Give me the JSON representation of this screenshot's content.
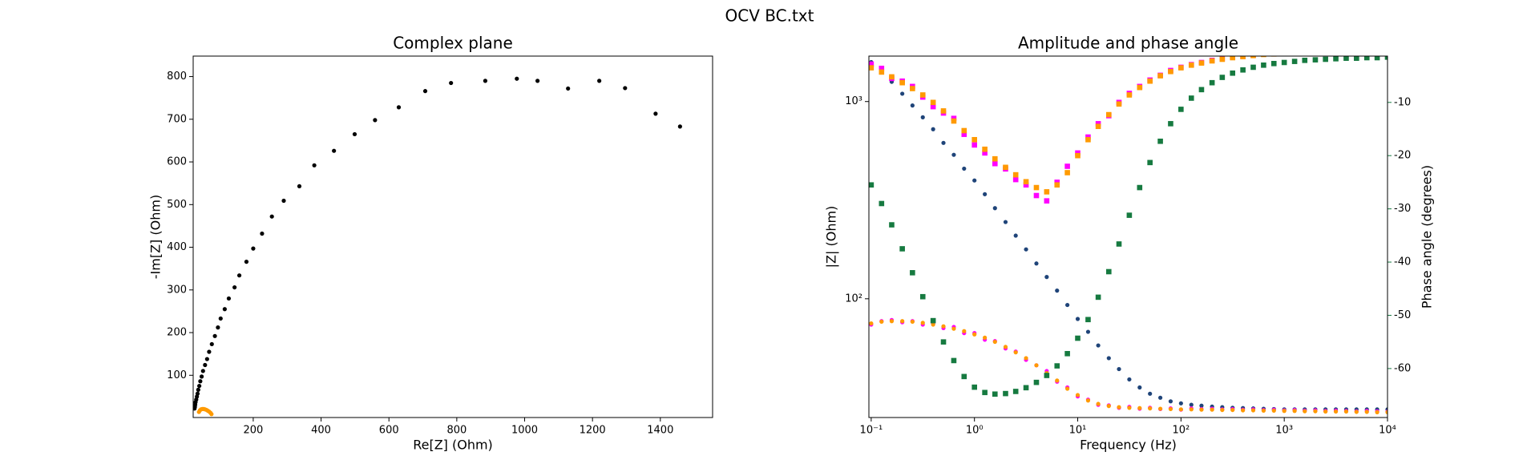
{
  "suptitle": "OCV BC.txt",
  "chart_data": [
    {
      "type": "scatter",
      "title": "Complex plane",
      "xlabel": "Re[Z] (Ohm)",
      "ylabel": "-Im[Z] (Ohm)",
      "xlim": [
        23,
        1554
      ],
      "ylim": [
        1,
        848
      ],
      "xticks": [
        200,
        400,
        600,
        800,
        1000,
        1200,
        1400
      ],
      "yticks": [
        100,
        200,
        300,
        400,
        500,
        600,
        700,
        800
      ],
      "series": [
        {
          "color": "#000000",
          "marker": "circle",
          "x": [
            1458,
            1386,
            1296,
            1220,
            1128,
            1038,
            977,
            884,
            783,
            707,
            629,
            559,
            499,
            438,
            380,
            336,
            290,
            255,
            226,
            200,
            180,
            159,
            145,
            128,
            116,
            104,
            96,
            87,
            78,
            70,
            64,
            58,
            52,
            48,
            44,
            41,
            38,
            36,
            34,
            32,
            30,
            29,
            28,
            27
          ],
          "values": [
            683,
            713,
            773,
            790,
            772,
            790,
            795,
            790,
            785,
            766,
            728,
            698,
            665,
            626,
            592,
            543,
            509,
            472,
            432,
            397,
            366,
            334,
            306,
            280,
            255,
            233,
            212,
            192,
            173,
            155,
            138,
            124,
            110,
            97,
            86,
            75,
            66,
            57,
            50,
            43,
            37,
            31,
            26,
            22
          ]
        },
        {
          "color": "#ff9a00",
          "marker": "circle",
          "x": [
            40,
            43,
            46,
            50,
            54,
            58,
            62,
            66,
            70,
            74,
            77
          ],
          "values": [
            14,
            18,
            20,
            21,
            21,
            20,
            19,
            17,
            15,
            12,
            9
          ]
        }
      ]
    },
    {
      "type": "scatter",
      "title": "Amplitude and phase angle",
      "xlabel": "Frequency (Hz)",
      "ylabel": "|Z| (Ohm)",
      "y2label": "Phase angle (degrees)",
      "ylabel_color": "#1f4479",
      "y2label_color": "#167a40",
      "xscale": "log",
      "yscale": "log",
      "xlim": [
        0.095,
        10000
      ],
      "ylim": [
        25,
        1700
      ],
      "y2lim": [
        -69.2,
        -1.3
      ],
      "xticks": [
        {
          "value": 0.1,
          "label": "10⁻¹"
        },
        {
          "value": 1,
          "label": "10⁰"
        },
        {
          "value": 10,
          "label": "10¹"
        },
        {
          "value": 100,
          "label": "10²"
        },
        {
          "value": 1000,
          "label": "10³"
        },
        {
          "value": 10000,
          "label": "10⁴"
        }
      ],
      "yticks": [
        {
          "value": 100,
          "label": "10²"
        },
        {
          "value": 1000,
          "label": "10³"
        }
      ],
      "y2ticks": [
        -10,
        -20,
        -30,
        -40,
        -50,
        -60
      ],
      "x": [
        0.1,
        0.126,
        0.158,
        0.2,
        0.251,
        0.316,
        0.398,
        0.501,
        0.631,
        0.794,
        1,
        1.26,
        1.58,
        2,
        2.51,
        3.16,
        3.98,
        5.01,
        6.31,
        7.94,
        10,
        12.6,
        15.8,
        20,
        25.1,
        31.6,
        39.8,
        50.1,
        63.1,
        79.4,
        100,
        126,
        158,
        200,
        251,
        316,
        398,
        501,
        631,
        794,
        1000,
        1260,
        1580,
        2000,
        2510,
        3160,
        3980,
        5010,
        6310,
        7940,
        10000
      ],
      "series": [
        {
          "color": "#1f4479",
          "marker": "circle",
          "axis": "y",
          "values": [
            1585,
            1413,
            1259,
            1096,
            955,
            832,
            724,
            617,
            537,
            457,
            398,
            339,
            288,
            245,
            209,
            178,
            151,
            129,
            110,
            93,
            79,
            68,
            58,
            50,
            44,
            39,
            35.5,
            33,
            31.5,
            30.2,
            29.5,
            29,
            28.7,
            28.4,
            28.2,
            28,
            27.9,
            27.8,
            27.7,
            27.6,
            27.5,
            27.5,
            27.5,
            27.5,
            27.5,
            27.5,
            27.5,
            27.5,
            27.5,
            27.5,
            27.5
          ]
        },
        {
          "color": "#ff00ff",
          "marker": "circle",
          "axis": "y",
          "values": [
            74,
            77,
            78,
            76,
            77,
            74,
            75,
            71,
            72,
            67,
            67,
            62,
            61,
            56,
            54,
            49,
            46,
            43,
            38,
            35.5,
            32,
            30.8,
            29,
            28.8,
            28,
            28.3,
            27.7,
            28,
            27.6,
            27.8,
            27.4,
            27.8,
            27.6,
            27.7,
            27.5,
            27.6,
            27.4,
            27.5,
            27.3,
            27.4,
            27.2,
            27.3,
            27.1,
            27.2,
            27.0,
            27.1,
            27.0,
            26.9,
            27.0,
            26.9,
            26.8
          ]
        },
        {
          "color": "#ff9a00",
          "marker": "circle",
          "axis": "y",
          "values": [
            75,
            76.5,
            77,
            77,
            76.5,
            75.5,
            74,
            72.5,
            70.5,
            68.5,
            66,
            63.5,
            60.5,
            57,
            53.5,
            50,
            46,
            42,
            38.5,
            35,
            32.5,
            30.5,
            29.3,
            28.6,
            28.2,
            28,
            27.9,
            27.8,
            27.7,
            27.6,
            27.5,
            27.5,
            27.4,
            27.4,
            27.3,
            27.3,
            27.2,
            27.2,
            27.1,
            27.1,
            27.0,
            27.0,
            26.9,
            26.9,
            26.8,
            26.8,
            26.8,
            26.7,
            26.7,
            26.6,
            26.6
          ]
        },
        {
          "color": "#ff00ff",
          "marker": "square",
          "axis": "y2",
          "values": [
            -2.8,
            -3.6,
            -5.5,
            -6.0,
            -7.0,
            -9.0,
            -10.8,
            -12.0,
            -13.0,
            -16.0,
            -18.0,
            -19.5,
            -21.5,
            -22.5,
            -24.5,
            -25.5,
            -27.5,
            -28.5,
            -25.0,
            -22.0,
            -19.5,
            -16.5,
            -14.0,
            -12.5,
            -10.0,
            -8.3,
            -7.0,
            -5.8,
            -4.9,
            -4.0,
            -3.4,
            -2.9,
            -2.5,
            -2.1,
            -1.8,
            -1.5,
            -1.3,
            -1.1,
            -0.9,
            -0.8,
            -0.7,
            -0.6,
            -0.6,
            -0.5,
            -0.5,
            -0.5,
            -0.4,
            -0.4,
            -0.4,
            -0.3,
            -0.3
          ]
        },
        {
          "color": "#ff9a00",
          "marker": "square",
          "axis": "y2",
          "values": [
            -3.5,
            -4.3,
            -5.2,
            -6.3,
            -7.4,
            -8.6,
            -10.0,
            -11.6,
            -13.5,
            -15.3,
            -17.0,
            -18.8,
            -20.6,
            -22.2,
            -23.6,
            -24.9,
            -26.0,
            -26.8,
            -25.5,
            -23.2,
            -20.0,
            -17.0,
            -14.5,
            -12.3,
            -10.3,
            -8.6,
            -7.2,
            -6.0,
            -5.0,
            -4.2,
            -3.5,
            -3.0,
            -2.6,
            -2.2,
            -1.9,
            -1.6,
            -1.4,
            -1.2,
            -1.0,
            -0.9,
            -0.8,
            -0.7,
            -0.7,
            -0.6,
            -0.6,
            -0.5,
            -0.5,
            -0.5,
            -0.4,
            -0.4,
            -0.4
          ]
        },
        {
          "color": "#167a40",
          "marker": "square",
          "axis": "y2",
          "values": [
            -25.5,
            -29,
            -33,
            -37.5,
            -42,
            -46.5,
            -51,
            -55,
            -58.5,
            -61.5,
            -63.5,
            -64.5,
            -64.8,
            -64.7,
            -64.3,
            -63.6,
            -62.6,
            -61.3,
            -59.5,
            -57.2,
            -54.3,
            -50.8,
            -46.6,
            -41.8,
            -36.6,
            -31.2,
            -26.0,
            -21.3,
            -17.3,
            -14.0,
            -11.3,
            -9.2,
            -7.6,
            -6.3,
            -5.3,
            -4.5,
            -3.9,
            -3.4,
            -3.0,
            -2.7,
            -2.5,
            -2.3,
            -2.1,
            -2.0,
            -1.9,
            -1.8,
            -1.7,
            -1.7,
            -1.6,
            -1.6,
            -1.5
          ]
        }
      ]
    }
  ]
}
